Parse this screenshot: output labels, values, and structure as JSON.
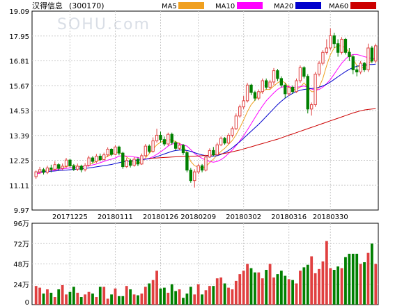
{
  "chart_data": [
    {
      "type": "candlestick",
      "title": "汉得信息",
      "code": "(300170)",
      "watermark": "SOHU.com",
      "y_ticks": [
        "19.09",
        "17.95",
        "16.81",
        "15.67",
        "14.53",
        "13.39",
        "12.25",
        "11.11",
        "9.97"
      ],
      "ylim": [
        9.97,
        19.09
      ],
      "x_tick_labels": [
        "20171225",
        "20180111",
        "20180126",
        "20180209",
        "20180302",
        "20180316",
        "20180330"
      ],
      "x_tick_index": [
        9,
        21,
        33,
        43,
        55,
        67,
        78
      ],
      "up_color": "#e04040",
      "down_color": "#008000",
      "legend": [
        {
          "name": "MA5",
          "color": "#f0a020"
        },
        {
          "name": "MA10",
          "color": "#ff00ff"
        },
        {
          "name": "MA20",
          "color": "#0000cc"
        },
        {
          "name": "MA60",
          "color": "#cc0000"
        }
      ],
      "candles": [
        [
          11.5,
          11.72,
          11.4,
          11.78
        ],
        [
          11.72,
          11.82,
          11.62,
          11.95
        ],
        [
          11.82,
          11.7,
          11.6,
          11.9
        ],
        [
          11.7,
          11.9,
          11.62,
          12.0
        ],
        [
          11.9,
          11.84,
          11.7,
          12.05
        ],
        [
          11.84,
          12.05,
          11.78,
          12.2
        ],
        [
          12.05,
          11.88,
          11.78,
          12.12
        ],
        [
          11.88,
          11.98,
          11.8,
          12.1
        ],
        [
          11.98,
          12.26,
          11.9,
          12.36
        ],
        [
          12.26,
          12.0,
          11.92,
          12.32
        ],
        [
          12.0,
          11.84,
          11.76,
          12.08
        ],
        [
          11.84,
          11.98,
          11.76,
          12.1
        ],
        [
          11.98,
          11.82,
          11.7,
          12.05
        ],
        [
          11.82,
          12.02,
          11.74,
          12.12
        ],
        [
          12.02,
          12.36,
          11.96,
          12.46
        ],
        [
          12.36,
          12.2,
          12.1,
          12.44
        ],
        [
          12.2,
          12.44,
          12.12,
          12.54
        ],
        [
          12.44,
          12.28,
          12.2,
          12.56
        ],
        [
          12.28,
          12.5,
          12.24,
          12.6
        ],
        [
          12.5,
          12.76,
          12.4,
          12.84
        ],
        [
          12.76,
          12.52,
          12.44,
          12.8
        ],
        [
          12.52,
          12.86,
          12.48,
          12.94
        ],
        [
          12.86,
          12.58,
          12.48,
          12.92
        ],
        [
          12.58,
          11.96,
          11.86,
          12.64
        ],
        [
          11.96,
          12.24,
          11.9,
          12.36
        ],
        [
          12.24,
          12.02,
          11.92,
          12.32
        ],
        [
          12.02,
          12.3,
          11.96,
          12.4
        ],
        [
          12.3,
          12.08,
          11.98,
          12.38
        ],
        [
          12.08,
          12.46,
          12.04,
          12.56
        ],
        [
          12.46,
          12.9,
          12.4,
          13.0
        ],
        [
          12.9,
          12.66,
          12.58,
          12.98
        ],
        [
          12.66,
          13.14,
          12.6,
          13.3
        ],
        [
          13.14,
          13.4,
          13.06,
          13.7
        ],
        [
          13.4,
          13.2,
          13.06,
          13.56
        ],
        [
          13.2,
          13.0,
          12.9,
          13.34
        ],
        [
          13.0,
          13.44,
          12.92,
          13.52
        ],
        [
          13.44,
          13.06,
          12.96,
          13.52
        ],
        [
          13.06,
          12.8,
          12.7,
          13.14
        ],
        [
          12.8,
          12.94,
          12.72,
          13.04
        ],
        [
          12.94,
          12.6,
          12.5,
          13.0
        ],
        [
          12.6,
          11.8,
          11.7,
          12.66
        ],
        [
          11.8,
          11.32,
          11.22,
          11.9
        ],
        [
          11.32,
          11.72,
          11.0,
          11.84
        ],
        [
          11.72,
          12.0,
          11.62,
          12.1
        ],
        [
          12.0,
          11.8,
          11.7,
          12.08
        ],
        [
          11.8,
          12.4,
          11.74,
          12.5
        ],
        [
          12.4,
          12.7,
          12.36,
          12.8
        ],
        [
          12.7,
          12.5,
          12.44,
          12.86
        ],
        [
          12.5,
          12.96,
          12.46,
          13.06
        ],
        [
          12.96,
          13.26,
          12.9,
          13.34
        ],
        [
          13.26,
          13.04,
          12.96,
          13.32
        ],
        [
          13.04,
          13.4,
          12.98,
          13.5
        ],
        [
          13.4,
          13.7,
          13.3,
          13.8
        ],
        [
          13.7,
          14.28,
          13.64,
          14.4
        ],
        [
          14.28,
          14.7,
          14.2,
          14.8
        ],
        [
          14.7,
          14.98,
          14.6,
          15.2
        ],
        [
          14.98,
          15.7,
          14.9,
          15.8
        ],
        [
          15.7,
          15.36,
          15.24,
          15.76
        ],
        [
          15.36,
          15.1,
          14.98,
          15.44
        ],
        [
          15.1,
          15.4,
          15.0,
          15.5
        ],
        [
          15.4,
          15.9,
          15.3,
          16.0
        ],
        [
          15.9,
          15.6,
          15.5,
          16.0
        ],
        [
          15.6,
          15.84,
          15.5,
          15.94
        ],
        [
          15.84,
          16.36,
          15.7,
          16.48
        ],
        [
          16.36,
          16.0,
          15.88,
          16.44
        ],
        [
          16.0,
          15.7,
          15.6,
          16.1
        ],
        [
          15.7,
          15.3,
          15.1,
          15.8
        ],
        [
          15.3,
          15.6,
          15.2,
          15.7
        ],
        [
          15.6,
          15.4,
          15.3,
          15.68
        ],
        [
          15.4,
          15.9,
          15.34,
          16.0
        ],
        [
          15.9,
          16.5,
          15.8,
          16.6
        ],
        [
          16.5,
          16.1,
          16.0,
          16.56
        ],
        [
          16.1,
          14.6,
          14.4,
          16.2
        ],
        [
          14.6,
          14.8,
          14.3,
          14.9
        ],
        [
          14.8,
          16.2,
          14.7,
          16.3
        ],
        [
          16.2,
          16.7,
          16.1,
          16.8
        ],
        [
          16.7,
          17.2,
          16.6,
          17.3
        ],
        [
          17.2,
          17.4,
          17.1,
          17.8
        ],
        [
          17.4,
          17.96,
          17.3,
          18.3
        ],
        [
          17.96,
          17.6,
          17.4,
          18.1
        ],
        [
          17.6,
          17.2,
          17.0,
          17.8
        ],
        [
          17.2,
          17.8,
          17.1,
          17.9
        ],
        [
          17.8,
          17.2,
          17.1,
          17.86
        ],
        [
          17.2,
          17.0,
          16.8,
          17.4
        ],
        [
          17.0,
          16.4,
          16.2,
          17.1
        ],
        [
          16.4,
          16.3,
          16.1,
          16.6
        ],
        [
          16.3,
          16.7,
          16.2,
          16.8
        ],
        [
          16.7,
          16.4,
          16.3,
          16.76
        ],
        [
          16.4,
          17.4,
          16.3,
          17.6
        ],
        [
          17.4,
          16.8,
          16.7,
          17.5
        ],
        [
          16.8,
          17.5,
          16.7,
          17.6
        ]
      ],
      "ma": {
        "MA5": {
          "from": 0,
          "values": [
            11.6,
            11.7,
            11.75,
            11.8,
            11.82,
            11.86,
            11.9,
            11.92,
            11.96,
            12.0,
            12.0,
            11.98,
            11.96,
            11.97,
            12.04,
            12.12,
            12.2,
            12.28,
            12.34,
            12.44,
            12.52,
            12.6,
            12.62,
            12.5,
            12.4,
            12.28,
            12.14,
            12.1,
            12.2,
            12.36,
            12.56,
            12.76,
            12.96,
            13.08,
            13.14,
            13.2,
            13.18,
            13.1,
            13.04,
            12.9,
            12.6,
            12.2,
            12.0,
            11.94,
            11.9,
            11.96,
            12.14,
            12.3,
            12.5,
            12.66,
            12.8,
            12.98,
            13.16,
            13.42,
            13.74,
            14.1,
            14.48,
            14.8,
            15.0,
            15.26,
            15.44,
            15.5,
            15.5,
            15.66,
            15.8,
            15.9,
            15.8,
            15.6,
            15.5,
            15.5,
            15.6,
            15.8,
            15.6,
            15.4,
            15.4,
            15.6,
            16.0,
            16.6,
            17.1,
            17.4,
            17.5,
            17.5,
            17.4,
            17.2,
            16.9,
            16.6,
            16.5,
            16.5,
            16.7,
            16.8,
            17.0
          ]
        },
        "MA10": {
          "from": 0,
          "values": [
            11.62,
            11.66,
            11.7,
            11.74,
            11.77,
            11.8,
            11.84,
            11.86,
            11.88,
            11.9,
            11.92,
            11.94,
            11.95,
            11.96,
            12.0,
            12.04,
            12.08,
            12.14,
            12.2,
            12.26,
            12.3,
            12.36,
            12.44,
            12.46,
            12.44,
            12.44,
            12.4,
            12.38,
            12.32,
            12.3,
            12.34,
            12.42,
            12.52,
            12.64,
            12.76,
            12.9,
            13.0,
            13.02,
            13.0,
            12.96,
            12.9,
            12.74,
            12.56,
            12.44,
            12.34,
            12.26,
            12.2,
            12.16,
            12.2,
            12.28,
            12.4,
            12.56,
            12.72,
            12.92,
            13.14,
            13.38,
            13.64,
            13.92,
            14.2,
            14.48,
            14.74,
            14.98,
            15.16,
            15.34,
            15.5,
            15.6,
            15.64,
            15.62,
            15.6,
            15.6,
            15.62,
            15.66,
            15.6,
            15.52,
            15.46,
            15.5,
            15.6,
            15.76,
            15.96,
            16.2,
            16.46,
            16.7,
            16.9,
            17.04,
            17.1,
            17.1,
            17.06,
            17.0,
            16.96,
            16.92,
            16.9
          ]
        },
        "MA20": {
          "from": 0,
          "values": [
            11.7,
            11.72,
            11.73,
            11.74,
            11.75,
            11.76,
            11.78,
            11.79,
            11.8,
            11.82,
            11.83,
            11.85,
            11.86,
            11.88,
            11.9,
            11.92,
            11.95,
            11.98,
            12.0,
            12.03,
            12.06,
            12.1,
            12.14,
            12.18,
            12.2,
            12.22,
            12.24,
            12.26,
            12.28,
            12.3,
            12.32,
            12.36,
            12.42,
            12.48,
            12.54,
            12.6,
            12.66,
            12.7,
            12.72,
            12.72,
            12.7,
            12.66,
            12.6,
            12.54,
            12.5,
            12.46,
            12.44,
            12.44,
            12.46,
            12.52,
            12.6,
            12.7,
            12.82,
            12.96,
            13.1,
            13.26,
            13.42,
            13.58,
            13.74,
            13.9,
            14.08,
            14.26,
            14.44,
            14.62,
            14.8,
            14.96,
            15.1,
            15.22,
            15.32,
            15.4,
            15.46,
            15.5,
            15.52,
            15.54,
            15.56,
            15.6,
            15.66,
            15.74,
            15.84,
            15.96,
            16.08,
            16.2,
            16.32,
            16.42,
            16.5,
            16.56,
            16.6,
            16.62,
            16.64,
            16.64,
            16.66
          ]
        },
        "MA60": {
          "from": 30,
          "values": [
            12.34,
            12.35,
            12.36,
            12.37,
            12.38,
            12.39,
            12.4,
            12.41,
            12.42,
            12.43,
            12.44,
            12.44,
            12.44,
            12.45,
            12.46,
            12.47,
            12.48,
            12.5,
            12.52,
            12.54,
            12.57,
            12.6,
            12.64,
            12.68,
            12.72,
            12.77,
            12.82,
            12.87,
            12.92,
            12.97,
            13.02,
            13.07,
            13.12,
            13.17,
            13.22,
            13.28,
            13.34,
            13.4,
            13.46,
            13.52,
            13.58,
            13.64,
            13.7,
            13.76,
            13.82,
            13.88,
            13.94,
            14.0,
            14.06,
            14.12,
            14.18,
            14.24,
            14.3,
            14.36,
            14.42,
            14.47,
            14.52,
            14.56,
            14.58,
            14.6,
            14.62
          ]
        }
      }
    },
    {
      "type": "bar",
      "title": "",
      "y_ticks": [
        "96万",
        "72万",
        "48万",
        "24万",
        "0"
      ],
      "ylim": [
        0,
        96
      ],
      "unit": "万",
      "up_color": "#e04040",
      "down_color": "#008000",
      "values": [
        22,
        20,
        13,
        18,
        14,
        9,
        18,
        23,
        12,
        15,
        21,
        14,
        9,
        12,
        15,
        13,
        9,
        21,
        21,
        7,
        12,
        19,
        10,
        10,
        22,
        18,
        12,
        11,
        13,
        21,
        25,
        29,
        40,
        19,
        20,
        14,
        24,
        16,
        18,
        8,
        13,
        21,
        12,
        24,
        12,
        17,
        22,
        22,
        31,
        32,
        25,
        20,
        18,
        28,
        36,
        40,
        48,
        43,
        38,
        38,
        31,
        41,
        48,
        32,
        36,
        40,
        34,
        30,
        29,
        25,
        40,
        44,
        47,
        57,
        37,
        42,
        51,
        75,
        43,
        41,
        45,
        43,
        56,
        60,
        60,
        60,
        48,
        50,
        61,
        72,
        48
      ]
    }
  ]
}
